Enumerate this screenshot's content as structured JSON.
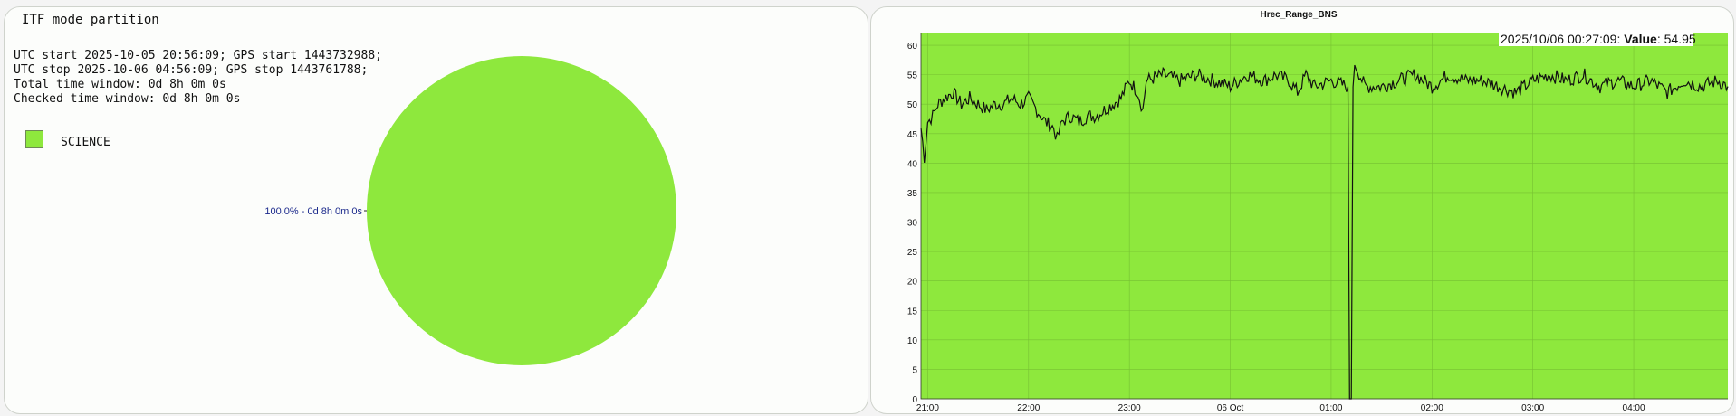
{
  "left": {
    "title": "ITF mode partition",
    "lines": [
      "UTC start 2025-10-05 20:56:09; GPS start 1443732988;",
      "UTC stop 2025-10-06 04:56:09; GPS stop 1443761788;",
      "Total time window: 0d 8h 0m 0s",
      "Checked time window: 0d 8h 0m 0s"
    ],
    "legend_label": "SCIENCE",
    "pie_label": "100.0% - 0d 8h 0m 0s"
  },
  "colors": {
    "science": "#8ee83d",
    "line": "#111111",
    "pie_label": "#1c2a8c"
  },
  "chart_data": [
    {
      "type": "pie",
      "slices": [
        {
          "label": "SCIENCE",
          "value": 100.0,
          "duration": "0d 8h 0m 0s"
        }
      ]
    },
    {
      "type": "line",
      "title": "Hrec_Range_BNS",
      "xlabel": "",
      "ylabel": "",
      "ylim": [
        0,
        62
      ],
      "xlim": [
        "2025-10-05 20:56",
        "2025-10-06 04:56"
      ],
      "yticks": [
        "0",
        "5",
        "10",
        "15",
        "20",
        "25",
        "30",
        "35",
        "40",
        "45",
        "50",
        "55",
        "60"
      ],
      "xticks": [
        {
          "label": "21:00",
          "t": "2025-10-05 21:00"
        },
        {
          "label": "22:00",
          "t": "2025-10-05 22:00"
        },
        {
          "label": "23:00",
          "t": "2025-10-05 23:00"
        },
        {
          "label": "06 Oct",
          "t": "2025-10-06 00:00"
        },
        {
          "label": "01:00",
          "t": "2025-10-06 01:00"
        },
        {
          "label": "02:00",
          "t": "2025-10-06 02:00"
        },
        {
          "label": "03:00",
          "t": "2025-10-06 03:00"
        },
        {
          "label": "04:00",
          "t": "2025-10-06 04:00"
        }
      ],
      "grid": true,
      "annotation": {
        "time": "2025/10/06 00:27:09",
        "key": "Value",
        "value": "54.95"
      },
      "series": [
        {
          "x": [
            "2025-10-05 20:56",
            "2025-10-05 20:58",
            "2025-10-05 21:00",
            "2025-10-05 21:03",
            "2025-10-05 21:06",
            "2025-10-05 21:10",
            "2025-10-05 21:15",
            "2025-10-05 21:20",
            "2025-10-05 21:25",
            "2025-10-05 21:30",
            "2025-10-05 21:35",
            "2025-10-05 21:40",
            "2025-10-05 21:45",
            "2025-10-05 21:50",
            "2025-10-05 21:55",
            "2025-10-05 22:00",
            "2025-10-05 22:05",
            "2025-10-05 22:10",
            "2025-10-05 22:15",
            "2025-10-05 22:17",
            "2025-10-05 22:20",
            "2025-10-05 22:25",
            "2025-10-05 22:30",
            "2025-10-05 22:35",
            "2025-10-05 22:40",
            "2025-10-05 22:45",
            "2025-10-05 22:50",
            "2025-10-05 22:55",
            "2025-10-05 23:00",
            "2025-10-05 23:05",
            "2025-10-05 23:08",
            "2025-10-05 23:10",
            "2025-10-05 23:20",
            "2025-10-05 23:30",
            "2025-10-05 23:40",
            "2025-10-05 23:50",
            "2025-10-06 00:00",
            "2025-10-06 00:10",
            "2025-10-06 00:20",
            "2025-10-06 00:27",
            "2025-10-06 00:35",
            "2025-10-06 00:40",
            "2025-10-06 00:45",
            "2025-10-06 00:50",
            "2025-10-06 01:00",
            "2025-10-06 01:10",
            "2025-10-06 01:11",
            "2025-10-06 01:12",
            "2025-10-06 01:13",
            "2025-10-06 01:14",
            "2025-10-06 01:20",
            "2025-10-06 01:30",
            "2025-10-06 01:40",
            "2025-10-06 01:50",
            "2025-10-06 02:00",
            "2025-10-06 02:10",
            "2025-10-06 02:20",
            "2025-10-06 02:30",
            "2025-10-06 02:40",
            "2025-10-06 02:50",
            "2025-10-06 03:00",
            "2025-10-06 03:10",
            "2025-10-06 03:20",
            "2025-10-06 03:30",
            "2025-10-06 03:40",
            "2025-10-06 03:50",
            "2025-10-06 04:00",
            "2025-10-06 04:10",
            "2025-10-06 04:20",
            "2025-10-06 04:30",
            "2025-10-06 04:40",
            "2025-10-06 04:50",
            "2025-10-06 04:56"
          ],
          "y": [
            46,
            41,
            47,
            48,
            50,
            51,
            52,
            50,
            51,
            50,
            49,
            50,
            50,
            51,
            50,
            51,
            49,
            47,
            46,
            44,
            47,
            48,
            47,
            48,
            48,
            49,
            50,
            51,
            54,
            52,
            49,
            54,
            55,
            54,
            55,
            54,
            53,
            55,
            54,
            54.95,
            54,
            52,
            55,
            53,
            54,
            53,
            0,
            0,
            52,
            57,
            53,
            53,
            54,
            55,
            53,
            55,
            54,
            54,
            53,
            52,
            54,
            55,
            54,
            55,
            53,
            54,
            53,
            54,
            52,
            54,
            53,
            54,
            53
          ]
        }
      ]
    }
  ]
}
